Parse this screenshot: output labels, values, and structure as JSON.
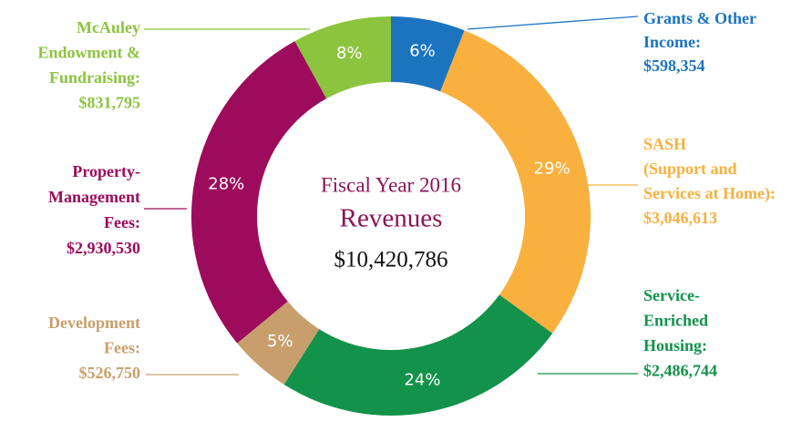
{
  "chart_data": {
    "type": "donut",
    "title": "Fiscal Year 2016",
    "subtitle": "Revenues",
    "total": "$10,420,786",
    "categories": [
      [
        "Grants & Other",
        "Income:"
      ],
      [
        "SASH",
        "(Support and",
        "Services at Home):"
      ],
      [
        "Service-",
        "Enriched",
        "Housing:"
      ],
      [
        "Development",
        "Fees:"
      ],
      [
        "Property-",
        "Management",
        "Fees:"
      ],
      [
        "McAuley",
        "Endowment &",
        "Fundraising:"
      ]
    ],
    "amounts": [
      "$598,354",
      "$3,046,613",
      "$2,486,744",
      "$526,750",
      "$2,930,530",
      "$831,795"
    ],
    "values": [
      6,
      29,
      24,
      5,
      28,
      8
    ],
    "value_labels": [
      "6%",
      "29%",
      "24%",
      "5%",
      "28%",
      "8%"
    ],
    "colors": [
      "#1c74bf",
      "#f9b03e",
      "#12924a",
      "#c89f6c",
      "#9c0b5c",
      "#8cc440"
    ]
  }
}
